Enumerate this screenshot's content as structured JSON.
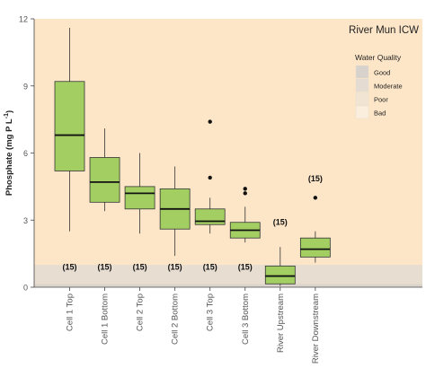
{
  "chart_data": {
    "type": "box",
    "title": "River Mun ICW",
    "xlabel": "",
    "ylabel": "Phosphate (mg P L",
    "ylabel_sup": "-1",
    "ylabel_close": ")",
    "ylim": [
      0,
      12
    ],
    "yticks": [
      "0",
      "3",
      "6",
      "9",
      "12"
    ],
    "yticks_values": [
      0,
      3,
      6,
      9,
      12
    ],
    "grid": false,
    "background_color": "#fde6c8",
    "box_color": "#a3cf62",
    "categories": [
      "Cell 1 Top",
      "Cell 1 Bottom",
      "Cell 2 Top",
      "Cell 2 Bottom",
      "Cell 3 Top",
      "Cell 3 Bottom",
      "River Upstream",
      "River Downstream"
    ],
    "boxes": [
      {
        "min": 2.5,
        "q1": 5.2,
        "median": 6.8,
        "q3": 9.2,
        "max": 11.6,
        "outliers": []
      },
      {
        "min": 3.4,
        "q1": 3.8,
        "median": 4.7,
        "q3": 5.8,
        "max": 7.1,
        "outliers": []
      },
      {
        "min": 2.4,
        "q1": 3.5,
        "median": 4.2,
        "q3": 4.5,
        "max": 6.0,
        "outliers": []
      },
      {
        "min": 1.4,
        "q1": 2.6,
        "median": 3.5,
        "q3": 4.4,
        "max": 5.4,
        "outliers": []
      },
      {
        "min": 2.4,
        "q1": 2.8,
        "median": 2.95,
        "q3": 3.5,
        "max": 4.0,
        "outliers": [
          7.4,
          4.9
        ]
      },
      {
        "min": 2.0,
        "q1": 2.2,
        "median": 2.55,
        "q3": 2.9,
        "max": 3.6,
        "outliers": [
          4.4,
          4.2
        ]
      },
      {
        "min": 0.05,
        "q1": 0.15,
        "median": 0.5,
        "q3": 0.95,
        "max": 1.8,
        "outliers": []
      },
      {
        "min": 1.1,
        "q1": 1.35,
        "median": 1.7,
        "q3": 2.2,
        "max": 2.5,
        "outliers": [
          4.0
        ]
      }
    ],
    "n_labels": [
      "(15)",
      "(15)",
      "(15)",
      "(15)",
      "(15)",
      "(15)",
      "(15)",
      "(15)"
    ],
    "n_label_values": [
      0.95,
      0.95,
      0.95,
      0.95,
      0.95,
      0.95,
      2.95,
      4.9
    ],
    "water_quality": {
      "title": "Water Quality",
      "items": [
        {
          "label": "Good",
          "color": "#d7d2cc",
          "upper": 0.15
        },
        {
          "label": "Moderate",
          "color": "#e4dcd2",
          "upper": 1.0
        },
        {
          "label": "Poor",
          "color": "#f1e4d2",
          "upper": null
        },
        {
          "label": "Bad",
          "color": "#fbeedd",
          "upper": null
        }
      ]
    },
    "legend_position": "right"
  }
}
